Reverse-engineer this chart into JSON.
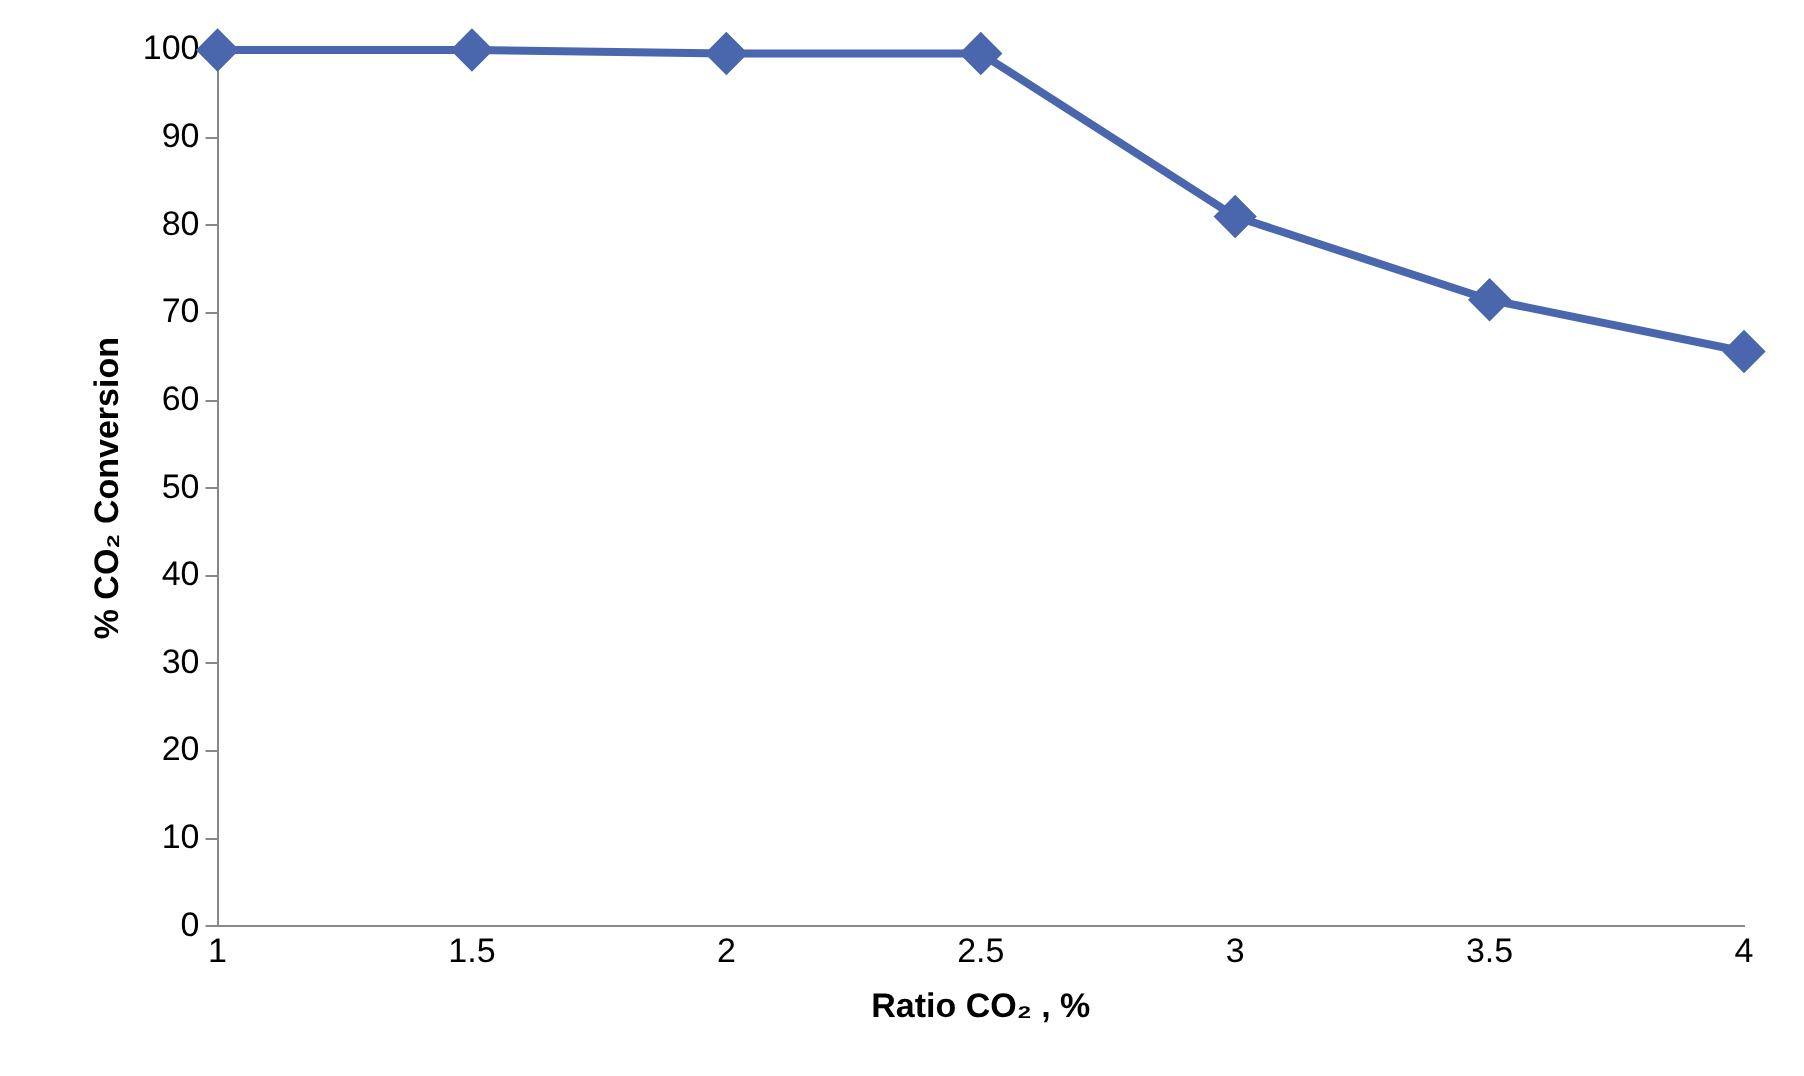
{
  "chart_data": {
    "type": "line",
    "xlabel": "Ratio CO₂ , %",
    "ylabel": "% CO₂ Conversion",
    "categories": [
      "1",
      "1.5",
      "2",
      "2.5",
      "3",
      "3.5",
      "4"
    ],
    "series": [
      {
        "color": "#4a66ac",
        "values": [
          100,
          100,
          99.6,
          99.6,
          81,
          71.5,
          65.6
        ]
      }
    ],
    "ylim": [
      0,
      100
    ],
    "yticks": [
      0,
      10,
      20,
      30,
      40,
      50,
      60,
      70,
      80,
      90,
      100
    ],
    "grid": false,
    "legend": false,
    "marker": "diamond",
    "line_style": "solid"
  }
}
